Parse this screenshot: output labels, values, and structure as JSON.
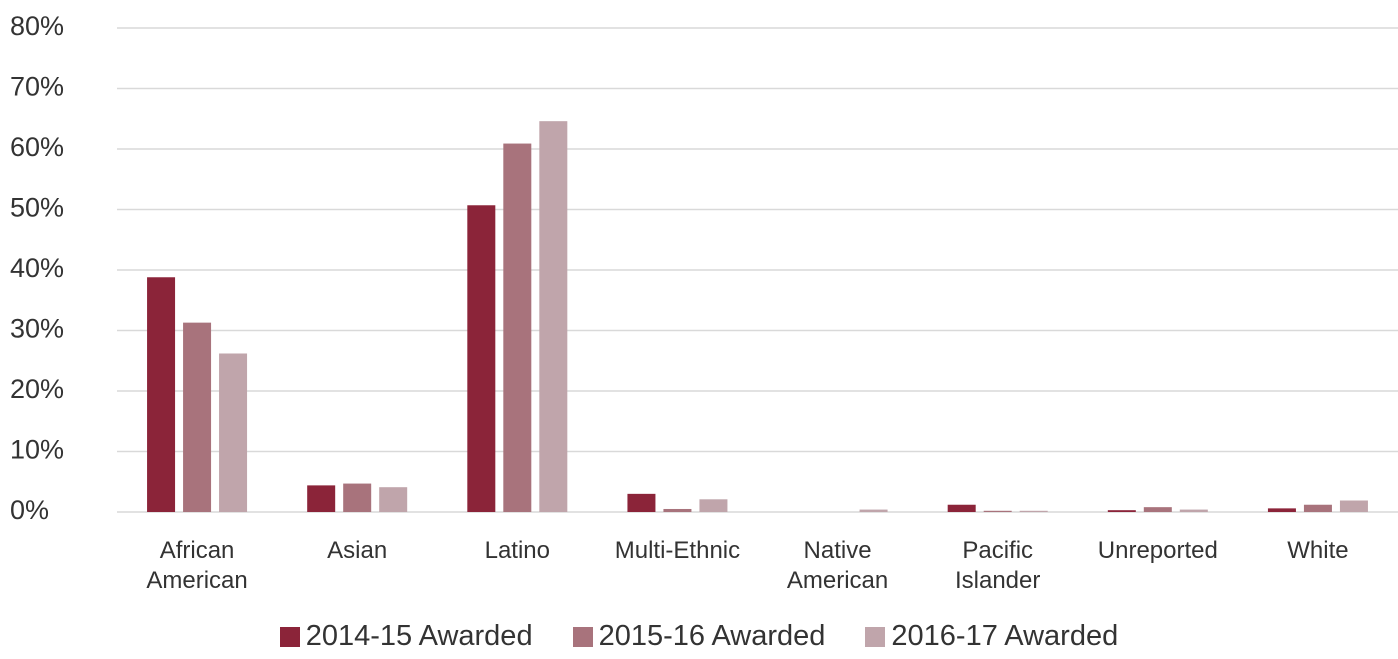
{
  "chart_data": {
    "type": "bar",
    "categories": [
      "African American",
      "Asian",
      "Latino",
      "Multi-Ethnic",
      "Native American",
      "Pacific Islander",
      "Unreported",
      "White"
    ],
    "series": [
      {
        "name": "2014-15 Awarded",
        "color": "#8b2439",
        "values": [
          38.8,
          4.4,
          50.7,
          3.0,
          0,
          1.2,
          0.3,
          0.6
        ]
      },
      {
        "name": "2015-16 Awarded",
        "color": "#a8737c",
        "values": [
          31.3,
          4.7,
          60.9,
          0.5,
          0,
          0.2,
          0.8,
          1.2
        ]
      },
      {
        "name": "2016-17 Awarded",
        "color": "#c0a5ab",
        "values": [
          26.2,
          4.1,
          64.6,
          2.1,
          0.4,
          0.2,
          0.4,
          1.9
        ]
      }
    ],
    "ylim": [
      0,
      80
    ],
    "yticks": [
      {
        "value": 0,
        "label": "0%"
      },
      {
        "value": 10,
        "label": "10%"
      },
      {
        "value": 20,
        "label": "20%"
      },
      {
        "value": 30,
        "label": "30%"
      },
      {
        "value": 40,
        "label": "40%"
      },
      {
        "value": 50,
        "label": "50%"
      },
      {
        "value": 60,
        "label": "60%"
      },
      {
        "value": 70,
        "label": "70%"
      },
      {
        "value": 80,
        "label": "80%"
      }
    ],
    "grid": true,
    "legend": "bottom"
  }
}
